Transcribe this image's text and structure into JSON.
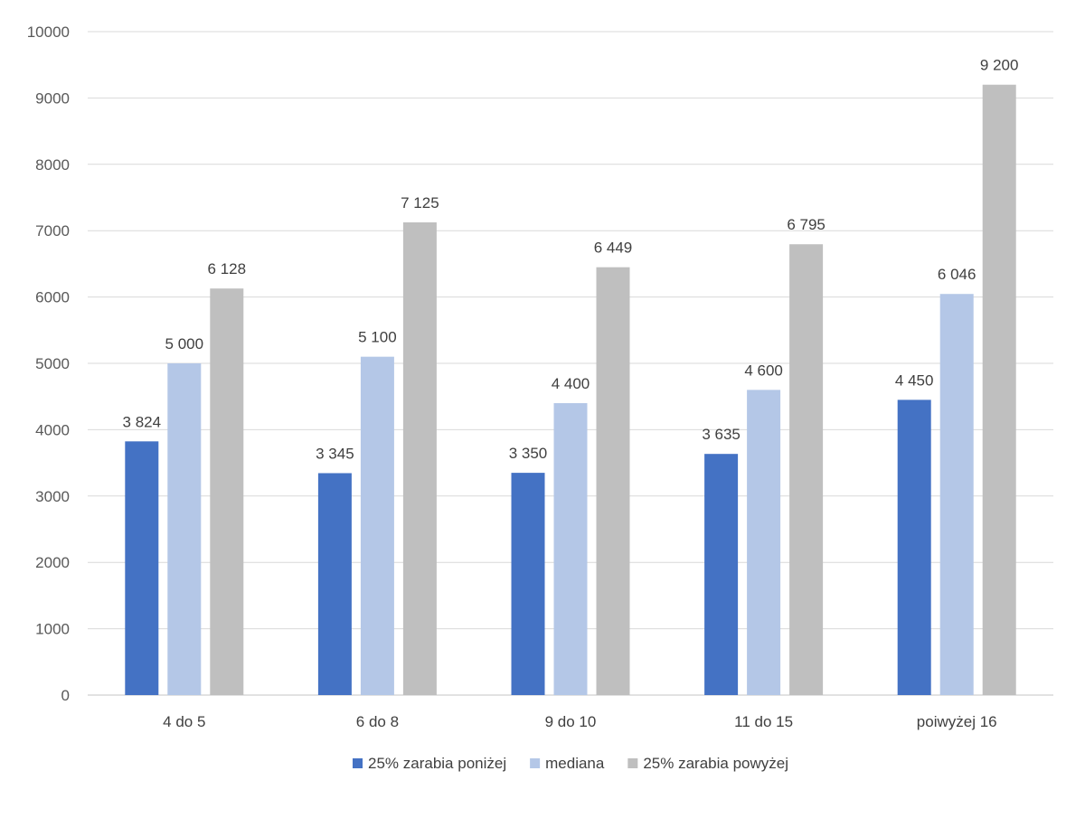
{
  "chart_data": {
    "type": "bar",
    "title": "",
    "xlabel": "",
    "ylabel": "",
    "ylim": [
      0,
      10000
    ],
    "yticks": [
      0,
      1000,
      2000,
      3000,
      4000,
      5000,
      6000,
      7000,
      8000,
      9000,
      10000
    ],
    "grid": true,
    "legend_position": "bottom",
    "categories": [
      "4 do 5",
      "6 do 8",
      "9 do 10",
      "11 do 15",
      "poiwyżej 16"
    ],
    "series": [
      {
        "name": "25% zarabia poniżej",
        "color": "#4472c4",
        "values": [
          3824,
          3345,
          3350,
          3635,
          4450
        ],
        "labels": [
          "3 824",
          "3 345",
          "3 350",
          "3 635",
          "4 450"
        ]
      },
      {
        "name": "mediana",
        "color": "#b4c7e7",
        "values": [
          5000,
          5100,
          4400,
          4600,
          6046
        ],
        "labels": [
          "5 000",
          "5 100",
          "4 400",
          "4 600",
          "6 046"
        ]
      },
      {
        "name": "25% zarabia powyżej",
        "color": "#bfbfbf",
        "values": [
          6128,
          7125,
          6449,
          6795,
          9200
        ],
        "labels": [
          "6 128",
          "7 125",
          "6 449",
          "6 795",
          "9 200"
        ]
      }
    ]
  }
}
